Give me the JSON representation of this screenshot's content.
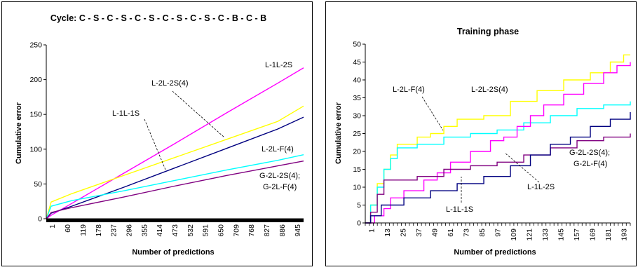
{
  "chart_data": [
    {
      "type": "line",
      "title": "Cycle: C - S - C - S - C - S - C - S - C - S - C - B - C - B",
      "xlabel": "Number of predictions",
      "ylabel": "Cumulative error",
      "xlim": [
        1,
        1000
      ],
      "ylim": [
        0,
        250
      ],
      "yticks": [
        0,
        50,
        100,
        150,
        200,
        250
      ],
      "xtick_labels": [
        "1",
        "60",
        "119",
        "178",
        "237",
        "296",
        "355",
        "414",
        "473",
        "532",
        "591",
        "650",
        "709",
        "768",
        "827",
        "886",
        "945"
      ],
      "grid": false,
      "series": [
        {
          "name": "L-1L-2S",
          "color": "#ff00ff",
          "points": [
            [
              1,
              0
            ],
            [
              20,
              5
            ],
            [
              100,
              22
            ],
            [
              300,
              65
            ],
            [
              500,
              108
            ],
            [
              700,
              152
            ],
            [
              900,
              195
            ],
            [
              1000,
              217
            ]
          ]
        },
        {
          "name": "L-2L-2S(4)",
          "color": "#ffff00",
          "points": [
            [
              1,
              0
            ],
            [
              20,
              24
            ],
            [
              100,
              36
            ],
            [
              300,
              62
            ],
            [
              500,
              88
            ],
            [
              700,
              114
            ],
            [
              900,
              140
            ],
            [
              1000,
              162
            ]
          ]
        },
        {
          "name": "L-1L-1S",
          "color": "#000080",
          "points": [
            [
              1,
              0
            ],
            [
              20,
              8
            ],
            [
              100,
              18
            ],
            [
              300,
              45
            ],
            [
              500,
              73
            ],
            [
              700,
              101
            ],
            [
              900,
              129
            ],
            [
              1000,
              146
            ]
          ]
        },
        {
          "name": "L-2L-F(4)",
          "color": "#00ffff",
          "points": [
            [
              1,
              0
            ],
            [
              20,
              18
            ],
            [
              100,
              26
            ],
            [
              300,
              40
            ],
            [
              500,
              55
            ],
            [
              700,
              70
            ],
            [
              900,
              84
            ],
            [
              1000,
              92
            ]
          ]
        },
        {
          "name": "G-2L-2S(4); G-2L-F(4)",
          "color": "#800080",
          "points": [
            [
              1,
              0
            ],
            [
              20,
              9
            ],
            [
              100,
              16
            ],
            [
              300,
              31
            ],
            [
              500,
              47
            ],
            [
              700,
              62
            ],
            [
              900,
              76
            ],
            [
              1000,
              83
            ]
          ]
        }
      ],
      "annotations": [
        {
          "text": "L-1L-2S"
        },
        {
          "text": "L-2L-2S(4)"
        },
        {
          "text": "L-1L-1S"
        },
        {
          "text": "L-2L-F(4)"
        },
        {
          "text": "G-2L-2S(4);"
        },
        {
          "text": "G-2L-F(4)"
        }
      ]
    },
    {
      "type": "line",
      "title": "Training phase",
      "xlabel": "Number of predictions",
      "ylabel": "Cumulative error",
      "xlim": [
        1,
        200
      ],
      "ylim": [
        0,
        50
      ],
      "yticks": [
        0,
        5,
        10,
        15,
        20,
        25,
        30,
        35,
        40,
        45,
        50
      ],
      "xtick_labels": [
        "1",
        "13",
        "25",
        "37",
        "49",
        "61",
        "73",
        "85",
        "97",
        "109",
        "121",
        "133",
        "145",
        "157",
        "169",
        "181",
        "193"
      ],
      "grid": false,
      "series": [
        {
          "name": "L-2L-2S(4)",
          "color": "#ffff00",
          "points": [
            [
              1,
              0
            ],
            [
              5,
              5
            ],
            [
              10,
              11
            ],
            [
              15,
              15
            ],
            [
              20,
              19
            ],
            [
              25,
              22
            ],
            [
              35,
              22
            ],
            [
              40,
              24
            ],
            [
              50,
              25
            ],
            [
              60,
              27
            ],
            [
              70,
              29
            ],
            [
              90,
              30
            ],
            [
              110,
              34
            ],
            [
              130,
              37
            ],
            [
              150,
              40
            ],
            [
              170,
              42
            ],
            [
              185,
              45
            ],
            [
              195,
              47
            ],
            [
              200,
              47
            ]
          ]
        },
        {
          "name": "L-2L-F(4)",
          "color": "#00ffff",
          "points": [
            [
              1,
              0
            ],
            [
              5,
              5
            ],
            [
              10,
              10
            ],
            [
              15,
              15
            ],
            [
              20,
              18
            ],
            [
              25,
              21
            ],
            [
              40,
              22
            ],
            [
              60,
              24
            ],
            [
              80,
              25
            ],
            [
              100,
              26
            ],
            [
              120,
              28
            ],
            [
              140,
              30
            ],
            [
              160,
              32
            ],
            [
              180,
              33
            ],
            [
              200,
              34
            ]
          ]
        },
        {
          "name": "L-1L-2S",
          "color": "#ff00ff",
          "points": [
            [
              1,
              0
            ],
            [
              8,
              2
            ],
            [
              15,
              4
            ],
            [
              20,
              7
            ],
            [
              30,
              9
            ],
            [
              45,
              12
            ],
            [
              55,
              14
            ],
            [
              65,
              17
            ],
            [
              80,
              20
            ],
            [
              95,
              23
            ],
            [
              105,
              24
            ],
            [
              115,
              27
            ],
            [
              125,
              30
            ],
            [
              135,
              33
            ],
            [
              150,
              36
            ],
            [
              165,
              39
            ],
            [
              180,
              42
            ],
            [
              190,
              44
            ],
            [
              200,
              45
            ]
          ]
        },
        {
          "name": "G-2L-2S(4); G-2L-F(4)",
          "color": "#800080",
          "points": [
            [
              1,
              0
            ],
            [
              5,
              3
            ],
            [
              10,
              8
            ],
            [
              15,
              12
            ],
            [
              40,
              13
            ],
            [
              60,
              15
            ],
            [
              80,
              16
            ],
            [
              100,
              17
            ],
            [
              120,
              19
            ],
            [
              140,
              21
            ],
            [
              160,
              23
            ],
            [
              180,
              24
            ],
            [
              200,
              25
            ]
          ]
        },
        {
          "name": "L-1L-1S",
          "color": "#000080",
          "points": [
            [
              1,
              0
            ],
            [
              5,
              2
            ],
            [
              13,
              5
            ],
            [
              30,
              7
            ],
            [
              50,
              9
            ],
            [
              70,
              11
            ],
            [
              90,
              13
            ],
            [
              110,
              16
            ],
            [
              125,
              19
            ],
            [
              140,
              22
            ],
            [
              155,
              24
            ],
            [
              170,
              27
            ],
            [
              185,
              29
            ],
            [
              200,
              31
            ]
          ]
        }
      ],
      "annotations": [
        {
          "text": "L-2L-F(4)"
        },
        {
          "text": "L-2L-2S(4)"
        },
        {
          "text": "G-2L-2S(4);"
        },
        {
          "text": "G-2L-F(4)"
        },
        {
          "text": "L-1L-2S"
        },
        {
          "text": "L-1L-1S"
        }
      ]
    }
  ]
}
